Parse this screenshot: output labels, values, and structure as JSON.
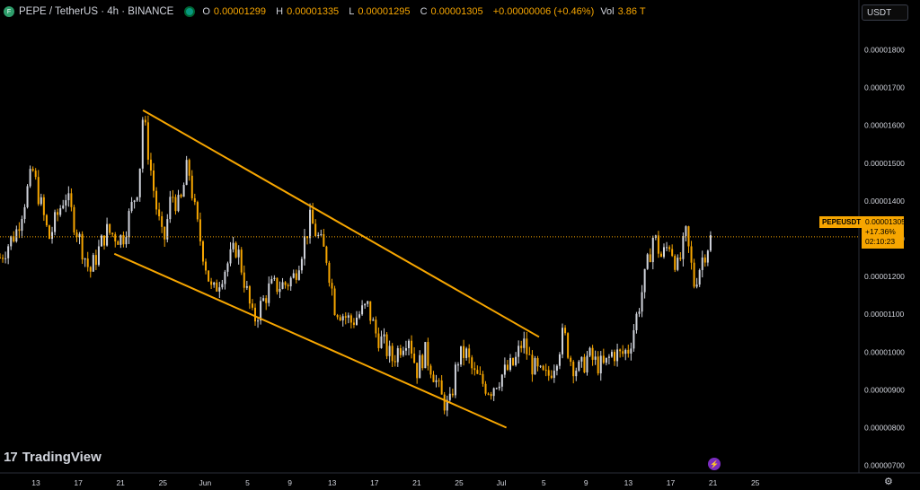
{
  "header": {
    "logo_glyph": "F",
    "symbol": "PEPE / TetherUS · 4h · BINANCE",
    "ohlc": {
      "o_label": "O",
      "o": "0.00001299",
      "h_label": "H",
      "h": "0.00001335",
      "l_label": "L",
      "l": "0.00001295",
      "c_label": "C",
      "c": "0.00001305",
      "change": "+0.00000006 (+0.46%)",
      "vol_label": "Vol",
      "vol": "3.86 T"
    }
  },
  "currency_selector": {
    "value": "USDT"
  },
  "price_label": {
    "symbol": "PEPEUSDT",
    "price": "0.00001305",
    "change_pct": "+17.36%",
    "countdown": "02:10:23"
  },
  "branding": {
    "logo_mark": "17",
    "name": "TradingView"
  },
  "icons": {
    "bolt": "lightning-icon",
    "settings": "gear-icon"
  },
  "colors": {
    "bg": "#000000",
    "accent": "#f7a600",
    "up": "#d1d4dc",
    "down": "#f7a600",
    "trendline": "#f7a600"
  },
  "chart_data": {
    "type": "candlestick",
    "symbol": "PEPEUSDT",
    "interval": "4h",
    "y_axis": {
      "ticks": [
        "0.00001800",
        "0.00001700",
        "0.00001600",
        "0.00001500",
        "0.00001400",
        "0.00001300",
        "0.00001200",
        "0.00001100",
        "0.00001000",
        "0.00000900",
        "0.00000800",
        "0.00000700"
      ],
      "ylim": [
        6.8e-06,
        1.87e-05
      ]
    },
    "x_axis": {
      "ticks": [
        "13",
        "17",
        "21",
        "25",
        "Jun",
        "5",
        "9",
        "13",
        "17",
        "21",
        "25",
        "Jul",
        "5",
        "9",
        "13",
        "17",
        "21",
        "25"
      ]
    },
    "close_price_line": 1.305e-05,
    "price_path": [
      [
        0,
        1.25e-05
      ],
      [
        2,
        1.32e-05
      ],
      [
        4,
        1.48e-05
      ],
      [
        6,
        1.3e-05
      ],
      [
        8,
        1.42e-05
      ],
      [
        10,
        1.28e-05
      ],
      [
        11,
        1.21e-05
      ],
      [
        13,
        1.32e-05
      ],
      [
        15,
        1.3e-05
      ],
      [
        17,
        1.45e-05
      ],
      [
        17.5,
        1.63e-05
      ],
      [
        19,
        1.4e-05
      ],
      [
        20,
        1.28e-05
      ],
      [
        21,
        1.42e-05
      ],
      [
        22,
        1.38e-05
      ],
      [
        23,
        1.5e-05
      ],
      [
        24,
        1.35e-05
      ],
      [
        25,
        1.25e-05
      ],
      [
        26,
        1.15e-05
      ],
      [
        27,
        1.2e-05
      ],
      [
        29,
        1.28e-05
      ],
      [
        30,
        1.18e-05
      ],
      [
        31,
        1.08e-05
      ],
      [
        33,
        1.17e-05
      ],
      [
        35,
        1.18e-05
      ],
      [
        36,
        1.2e-05
      ],
      [
        38,
        1.35e-05
      ],
      [
        40,
        1.25e-05
      ],
      [
        41,
        1.12e-05
      ],
      [
        43,
        1.08e-05
      ],
      [
        45,
        1.12e-05
      ],
      [
        46,
        1.05e-05
      ],
      [
        47,
        1.02e-05
      ],
      [
        48,
        9.8e-06
      ],
      [
        50,
        1.05e-05
      ],
      [
        51,
        9.5e-06
      ],
      [
        52,
        1e-05
      ],
      [
        53,
        9.5e-06
      ],
      [
        54,
        8.8e-06
      ],
      [
        55,
        8.5e-06
      ],
      [
        56,
        9.8e-06
      ],
      [
        57,
        1e-05
      ],
      [
        58,
        9.4e-06
      ],
      [
        59,
        9.2e-06
      ],
      [
        60,
        9e-06
      ],
      [
        61,
        9.3e-06
      ],
      [
        62,
        9.5e-06
      ],
      [
        63,
        9.7e-06
      ],
      [
        64,
        1.03e-05
      ],
      [
        65,
        9.7e-06
      ],
      [
        66,
        9.4e-06
      ],
      [
        67,
        9.3e-06
      ],
      [
        68,
        9.8e-06
      ],
      [
        69,
        1.05e-05
      ],
      [
        70,
        9.7e-06
      ],
      [
        71,
        9.5e-06
      ],
      [
        72,
        9.9e-06
      ],
      [
        73,
        9.7e-06
      ],
      [
        74,
        9.6e-06
      ],
      [
        75,
        1e-05
      ],
      [
        76,
        9.9e-06
      ],
      [
        77,
        1.01e-05
      ],
      [
        78,
        1.1e-05
      ],
      [
        79,
        1.2e-05
      ],
      [
        80,
        1.31e-05
      ],
      [
        81,
        1.25e-05
      ],
      [
        82,
        1.29e-05
      ],
      [
        83,
        1.22e-05
      ],
      [
        84,
        1.31e-05
      ],
      [
        85,
        1.18e-05
      ],
      [
        86,
        1.25e-05
      ],
      [
        87,
        1.3e-05
      ]
    ],
    "trendlines": [
      {
        "name": "upper-channel",
        "from": [
          17.5,
          1.64e-05
        ],
        "to": [
          66,
          1.04e-05
        ]
      },
      {
        "name": "lower-channel",
        "from": [
          14,
          1.26e-05
        ],
        "to": [
          62,
          8e-06
        ]
      }
    ]
  }
}
